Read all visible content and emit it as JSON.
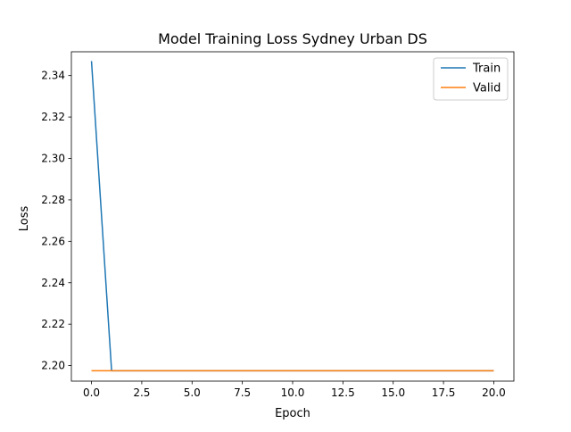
{
  "chart_data": {
    "type": "line",
    "title": "Model Training Loss Sydney Urban DS",
    "xlabel": "Epoch",
    "ylabel": "Loss",
    "xlim": [
      -1,
      21
    ],
    "ylim": [
      2.1925,
      2.3515
    ],
    "grid": false,
    "legend_position": "top-right",
    "xticks": [
      "0.0",
      "2.5",
      "5.0",
      "7.5",
      "10.0",
      "12.5",
      "15.0",
      "17.5",
      "20.0"
    ],
    "yticks": [
      "2.20",
      "2.22",
      "2.24",
      "2.26",
      "2.28",
      "2.30",
      "2.32",
      "2.34"
    ],
    "x": [
      0,
      1,
      2,
      3,
      4,
      5,
      6,
      7,
      8,
      9,
      10,
      11,
      12,
      13,
      14,
      15,
      16,
      17,
      18,
      19,
      20
    ],
    "series": [
      {
        "name": "Train",
        "color": "#1f77b4",
        "values": [
          2.347,
          2.1975,
          2.1975,
          2.1975,
          2.1975,
          2.1975,
          2.1975,
          2.1975,
          2.1975,
          2.1975,
          2.1975,
          2.1975,
          2.1975,
          2.1975,
          2.1975,
          2.1975,
          2.1975,
          2.1975,
          2.1975,
          2.1975,
          2.1975
        ]
      },
      {
        "name": "Valid",
        "color": "#ff7f0e",
        "values": [
          2.1975,
          2.1975,
          2.1975,
          2.1975,
          2.1975,
          2.1975,
          2.1975,
          2.1975,
          2.1975,
          2.1975,
          2.1975,
          2.1975,
          2.1975,
          2.1975,
          2.1975,
          2.1975,
          2.1975,
          2.1975,
          2.1975,
          2.1975,
          2.1975
        ]
      }
    ]
  }
}
